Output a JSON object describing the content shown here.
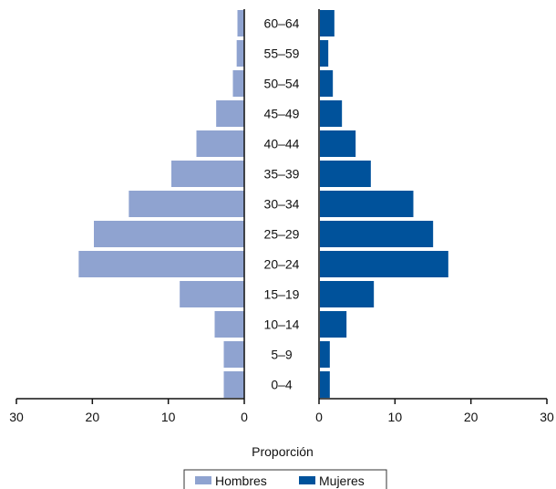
{
  "chart_data": {
    "type": "bar",
    "orientation": "horizontal",
    "layout": "population-pyramid",
    "categories": [
      "0–4",
      "5–9",
      "10–14",
      "15–19",
      "20–24",
      "25–29",
      "30–34",
      "35–39",
      "40–44",
      "45–49",
      "50–54",
      "55–59",
      "60–64"
    ],
    "series": [
      {
        "name": "Hombres",
        "side": "left",
        "color": "#8fa3d0",
        "values": [
          2.7,
          2.7,
          3.9,
          8.5,
          21.8,
          19.8,
          15.2,
          9.6,
          6.3,
          3.7,
          1.5,
          1.0,
          0.9
        ]
      },
      {
        "name": "Mujeres",
        "side": "right",
        "color": "#00529b",
        "values": [
          1.3,
          1.3,
          3.5,
          7.1,
          16.9,
          14.9,
          12.3,
          6.7,
          4.7,
          2.9,
          1.7,
          1.1,
          1.9
        ]
      }
    ],
    "xlabel": "Proporción",
    "xlim": [
      0,
      30
    ],
    "xticks": [
      0,
      10,
      20,
      30
    ],
    "legend_position": "bottom-center",
    "grid": false
  }
}
